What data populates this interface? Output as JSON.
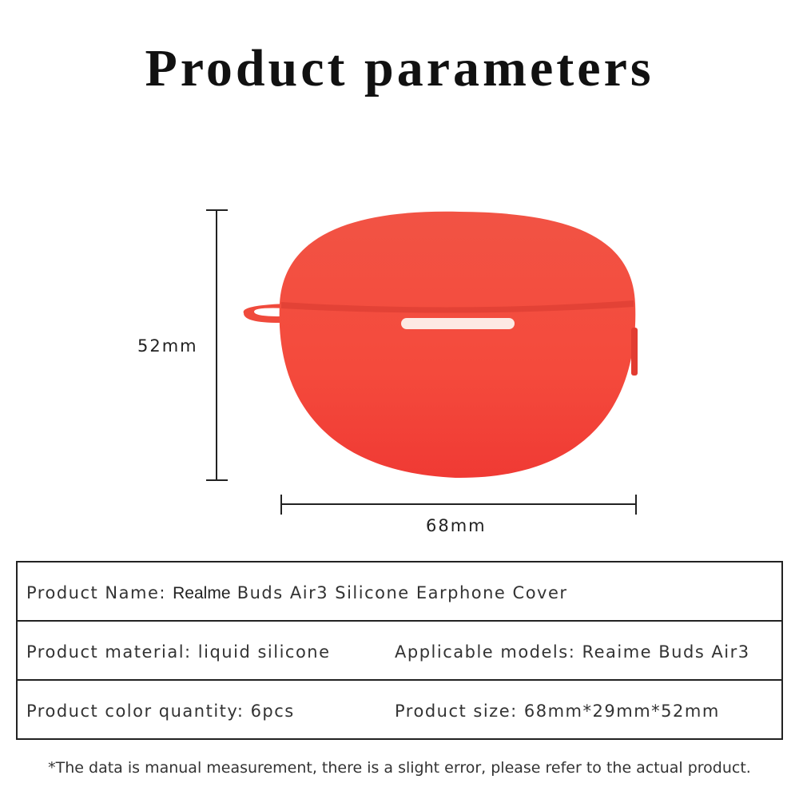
{
  "title": "Product parameters",
  "product": {
    "case_color": "#f4483c",
    "height_label": "52mm",
    "width_label": "68mm"
  },
  "table": {
    "name_label": "Product Name:",
    "name_brand": "Realme",
    "name_value": "Buds Air3 Silicone Earphone Cover",
    "material": "Product material: liquid silicone",
    "models": "Applicable models: Reaime Buds Air3",
    "color_qty": "Product color quantity: 6pcs",
    "size": "Product size: 68mm*29mm*52mm"
  },
  "note": "*The data is manual measurement, there is a slight error, please refer to the actual product."
}
